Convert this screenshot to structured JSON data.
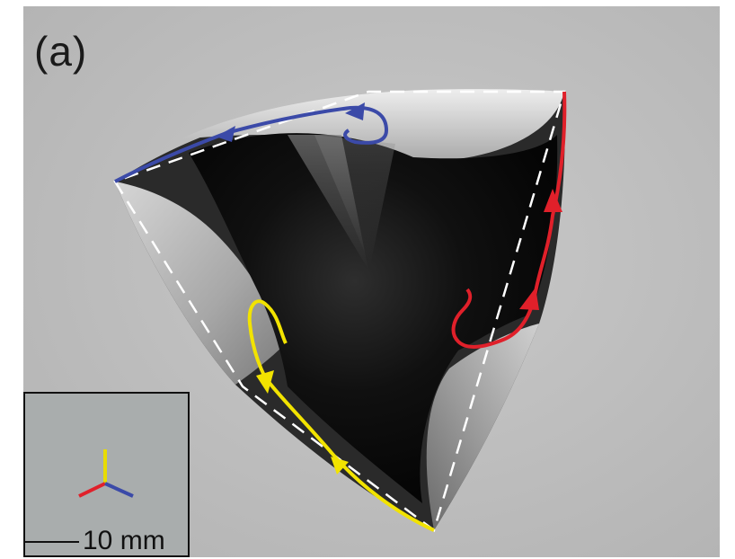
{
  "figure": {
    "panel_label": "(a)",
    "scale_bar_label": "10 mm"
  },
  "colors": {
    "background": "#bfbfbf",
    "blue_curve": "#3b4aa8",
    "red_curve": "#e0202a",
    "yellow_curve": "#f2e300",
    "dashed_outline": "#ffffff"
  }
}
